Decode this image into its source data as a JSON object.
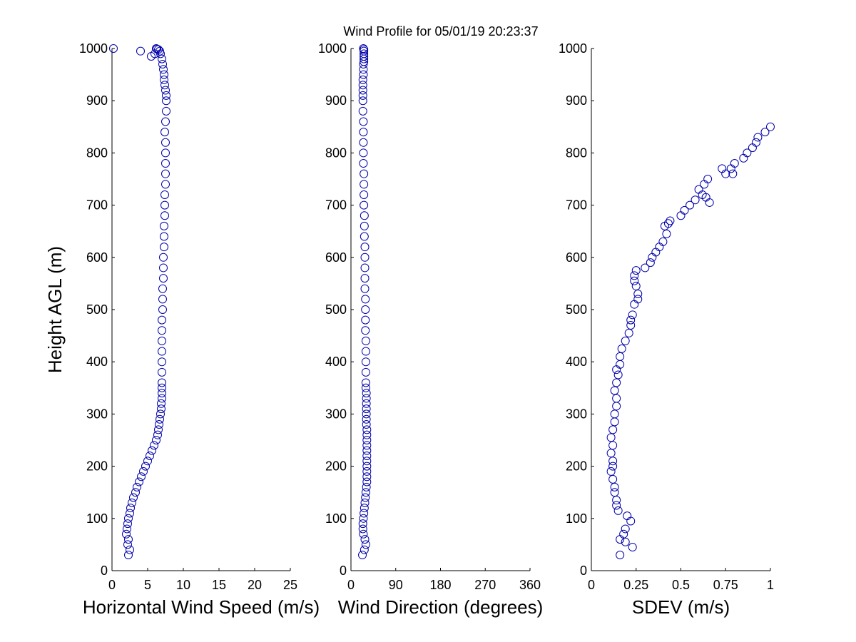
{
  "title": "Wind Profile for  05/01/19 20:23:37",
  "marker_color": "#0000aa",
  "chart_data": [
    {
      "type": "scatter",
      "xlabel": "Horizontal Wind Speed (m/s)",
      "ylabel": "Height AGL (m)",
      "xlim": [
        0,
        25
      ],
      "ylim": [
        0,
        1000
      ],
      "xticks": [
        0,
        5,
        10,
        15,
        20,
        25
      ],
      "yticks": [
        0,
        100,
        200,
        300,
        400,
        500,
        600,
        700,
        800,
        900,
        1000
      ],
      "xtick_labels": [
        "0",
        "5",
        "10",
        "15",
        "20",
        "25"
      ],
      "ytick_labels": [
        "0",
        "100",
        "200",
        "300",
        "400",
        "500",
        "600",
        "700",
        "800",
        "900",
        "1000"
      ],
      "x": [
        2.3,
        2.5,
        2.2,
        2.3,
        2.0,
        2.1,
        2.2,
        2.3,
        2.5,
        2.6,
        2.8,
        3.0,
        3.3,
        3.5,
        3.8,
        4.1,
        4.4,
        4.7,
        5.0,
        5.3,
        5.6,
        5.9,
        6.2,
        6.4,
        6.5,
        6.6,
        6.7,
        6.8,
        6.9,
        6.9,
        7.0,
        7.0,
        7.0,
        7.0,
        7.0,
        7.0,
        7.0,
        7.0,
        7.0,
        7.0,
        7.1,
        7.1,
        7.1,
        7.2,
        7.2,
        7.2,
        7.3,
        7.3,
        7.3,
        7.4,
        7.4,
        7.4,
        7.5,
        7.5,
        7.5,
        7.5,
        7.5,
        7.4,
        7.5,
        7.6,
        7.6,
        7.6,
        7.5,
        7.4,
        7.3,
        7.3,
        7.2,
        7.1,
        7.0,
        6.8,
        6.7,
        6.5,
        6.3,
        6.2,
        6.0,
        5.5,
        4.0,
        0.2
      ],
      "y": [
        30,
        40,
        50,
        60,
        70,
        80,
        90,
        100,
        110,
        120,
        130,
        140,
        150,
        160,
        170,
        180,
        190,
        200,
        210,
        220,
        230,
        240,
        250,
        260,
        270,
        280,
        290,
        300,
        310,
        320,
        330,
        340,
        350,
        360,
        380,
        400,
        420,
        440,
        460,
        480,
        500,
        520,
        540,
        560,
        580,
        600,
        620,
        640,
        660,
        680,
        700,
        720,
        740,
        760,
        780,
        800,
        820,
        840,
        860,
        880,
        900,
        910,
        920,
        930,
        940,
        950,
        960,
        970,
        980,
        990,
        995,
        998,
        999,
        1000,
        990,
        985,
        995,
        1000
      ]
    },
    {
      "type": "scatter",
      "xlabel": "Wind Direction (degrees)",
      "ylabel": "",
      "xlim": [
        0,
        360
      ],
      "ylim": [
        0,
        1000
      ],
      "xticks": [
        0,
        90,
        180,
        270,
        360
      ],
      "yticks": [
        0,
        100,
        200,
        300,
        400,
        500,
        600,
        700,
        800,
        900,
        1000
      ],
      "xtick_labels": [
        "0",
        "90",
        "180",
        "270",
        "360"
      ],
      "ytick_labels": [
        "0",
        "100",
        "200",
        "300",
        "400",
        "500",
        "600",
        "700",
        "800",
        "900",
        "1000"
      ],
      "x": [
        23,
        27,
        30,
        28,
        25,
        24,
        24,
        25,
        26,
        27,
        28,
        29,
        30,
        31,
        32,
        32,
        32,
        32,
        32,
        32,
        32,
        32,
        32,
        32,
        32,
        31,
        31,
        31,
        31,
        31,
        31,
        31,
        30,
        30,
        30,
        30,
        30,
        30,
        29,
        29,
        29,
        29,
        28,
        28,
        28,
        28,
        28,
        27,
        27,
        27,
        26,
        26,
        26,
        26,
        25,
        25,
        25,
        25,
        25,
        24,
        24,
        24,
        24,
        24,
        24,
        25,
        25,
        25,
        26,
        26,
        26,
        26,
        26,
        26,
        25
      ],
      "y": [
        30,
        40,
        50,
        60,
        70,
        80,
        90,
        100,
        110,
        120,
        130,
        140,
        150,
        160,
        170,
        180,
        190,
        200,
        210,
        220,
        230,
        240,
        250,
        260,
        270,
        280,
        290,
        300,
        310,
        320,
        330,
        340,
        350,
        360,
        380,
        400,
        420,
        440,
        460,
        480,
        500,
        520,
        540,
        560,
        580,
        600,
        620,
        640,
        660,
        680,
        700,
        720,
        740,
        760,
        780,
        800,
        820,
        840,
        860,
        880,
        900,
        910,
        920,
        930,
        940,
        950,
        960,
        970,
        975,
        980,
        985,
        990,
        995,
        998,
        1000
      ]
    },
    {
      "type": "scatter",
      "xlabel": "SDEV  (m/s)",
      "ylabel": "",
      "xlim": [
        0,
        1
      ],
      "ylim": [
        0,
        1000
      ],
      "xticks": [
        0,
        0.25,
        0.5,
        0.75,
        1
      ],
      "yticks": [
        0,
        100,
        200,
        300,
        400,
        500,
        600,
        700,
        800,
        900,
        1000
      ],
      "xtick_labels": [
        "0",
        "0.25",
        "0.5",
        "0.75",
        "1"
      ],
      "ytick_labels": [
        "0",
        "100",
        "200",
        "300",
        "400",
        "500",
        "600",
        "700",
        "800",
        "900",
        "1000"
      ],
      "x": [
        0.16,
        0.23,
        0.19,
        0.16,
        0.18,
        0.19,
        0.22,
        0.2,
        0.15,
        0.14,
        0.14,
        0.13,
        0.13,
        0.12,
        0.11,
        0.12,
        0.12,
        0.11,
        0.12,
        0.11,
        0.12,
        0.13,
        0.13,
        0.14,
        0.14,
        0.13,
        0.14,
        0.15,
        0.14,
        0.16,
        0.16,
        0.17,
        0.19,
        0.21,
        0.22,
        0.22,
        0.23,
        0.24,
        0.26,
        0.26,
        0.25,
        0.24,
        0.24,
        0.25,
        0.3,
        0.33,
        0.34,
        0.36,
        0.38,
        0.4,
        0.42,
        0.41,
        0.43,
        0.44,
        0.5,
        0.52,
        0.55,
        0.58,
        0.62,
        0.6,
        0.63,
        0.65,
        0.66,
        0.64,
        0.75,
        0.73,
        0.78,
        0.8,
        0.79,
        0.85,
        0.87,
        0.9,
        0.92,
        0.93,
        0.97,
        1.0
      ],
      "y": [
        30,
        45,
        55,
        60,
        70,
        80,
        95,
        105,
        115,
        125,
        135,
        150,
        160,
        175,
        190,
        200,
        210,
        225,
        240,
        255,
        270,
        285,
        300,
        315,
        330,
        345,
        360,
        375,
        385,
        395,
        410,
        425,
        440,
        455,
        470,
        480,
        490,
        510,
        520,
        530,
        545,
        555,
        565,
        575,
        580,
        590,
        600,
        610,
        620,
        630,
        645,
        660,
        665,
        670,
        680,
        690,
        700,
        710,
        720,
        730,
        740,
        750,
        705,
        715,
        760,
        770,
        770,
        780,
        760,
        790,
        800,
        810,
        820,
        830,
        840,
        850
      ]
    }
  ]
}
